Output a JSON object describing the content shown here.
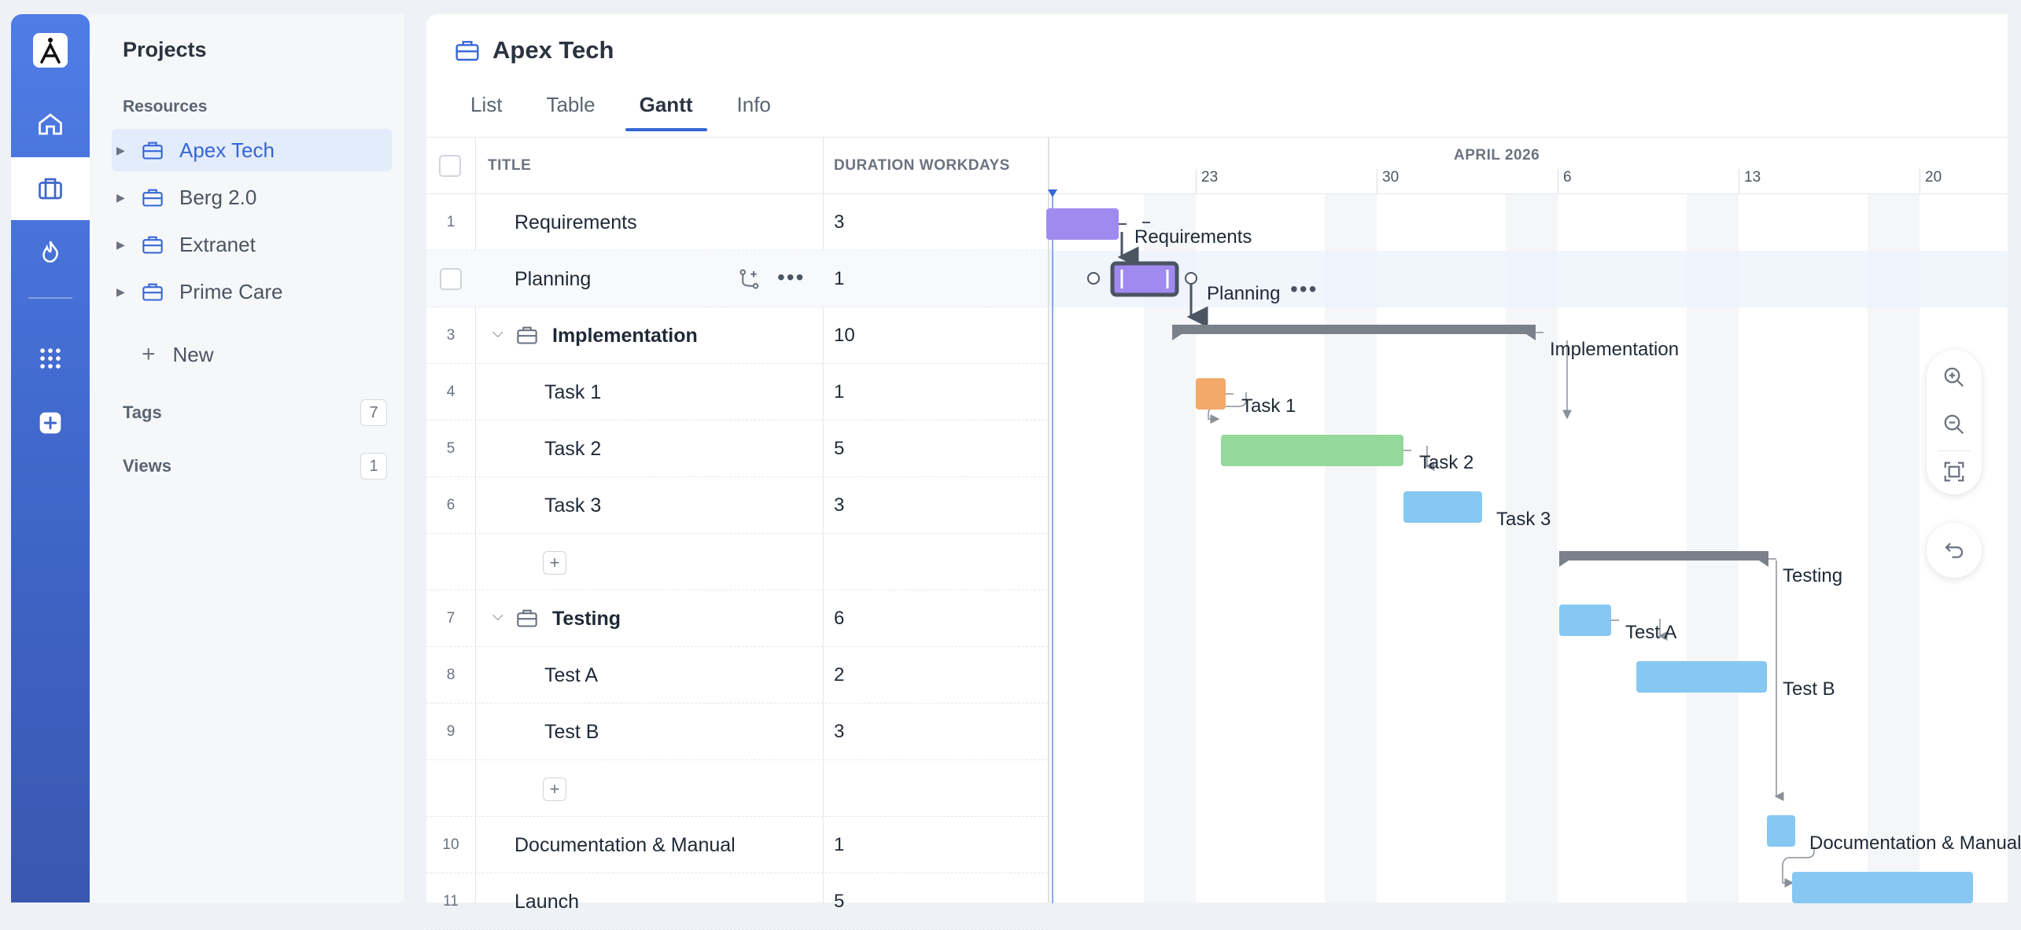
{
  "sidebar": {
    "title": "Projects",
    "section_label": "Resources",
    "projects": [
      {
        "label": "Apex Tech",
        "active": true
      },
      {
        "label": "Berg 2.0",
        "active": false
      },
      {
        "label": "Extranet",
        "active": false
      },
      {
        "label": "Prime Care",
        "active": false
      }
    ],
    "new_label": "New",
    "tags": {
      "label": "Tags",
      "count": "7"
    },
    "views": {
      "label": "Views",
      "count": "1"
    }
  },
  "project": {
    "title": "Apex Tech",
    "tabs": [
      {
        "label": "List",
        "active": false
      },
      {
        "label": "Table",
        "active": false
      },
      {
        "label": "Gantt",
        "active": true
      },
      {
        "label": "Info",
        "active": false
      }
    ]
  },
  "grid": {
    "columns": {
      "title": "TITLE",
      "duration": "DURATION WORKDAYS"
    },
    "rows": [
      {
        "num": "1",
        "title": "Requirements",
        "duration": "3"
      },
      {
        "num": "",
        "title": "Planning",
        "duration": "1"
      },
      {
        "num": "3",
        "title": "Implementation",
        "duration": "10"
      },
      {
        "num": "4",
        "title": "Task 1",
        "duration": "1"
      },
      {
        "num": "5",
        "title": "Task 2",
        "duration": "5"
      },
      {
        "num": "6",
        "title": "Task 3",
        "duration": "3"
      },
      {
        "num": "7",
        "title": "Testing",
        "duration": "6"
      },
      {
        "num": "8",
        "title": "Test A",
        "duration": "2"
      },
      {
        "num": "9",
        "title": "Test B",
        "duration": "3"
      },
      {
        "num": "10",
        "title": "Documentation & Manual",
        "duration": "1"
      },
      {
        "num": "11",
        "title": "Launch",
        "duration": "5"
      }
    ]
  },
  "gantt": {
    "month": "APRIL 2026",
    "days": [
      "23",
      "30",
      "6",
      "13",
      "20"
    ],
    "labels": {
      "requirements": "Requirements",
      "planning": "Planning",
      "implementation": "Implementation",
      "task1": "Task 1",
      "task2": "Task 2",
      "task3": "Task 3",
      "testing": "Testing",
      "testa": "Test A",
      "testb": "Test B",
      "docs": "Documentation & Manual"
    }
  },
  "colors": {
    "accent": "#3566d6",
    "purple": "#a08af0",
    "orange": "#f3a96a",
    "green": "#93d99a",
    "blue": "#86c8f2",
    "summary": "#7b818a"
  }
}
